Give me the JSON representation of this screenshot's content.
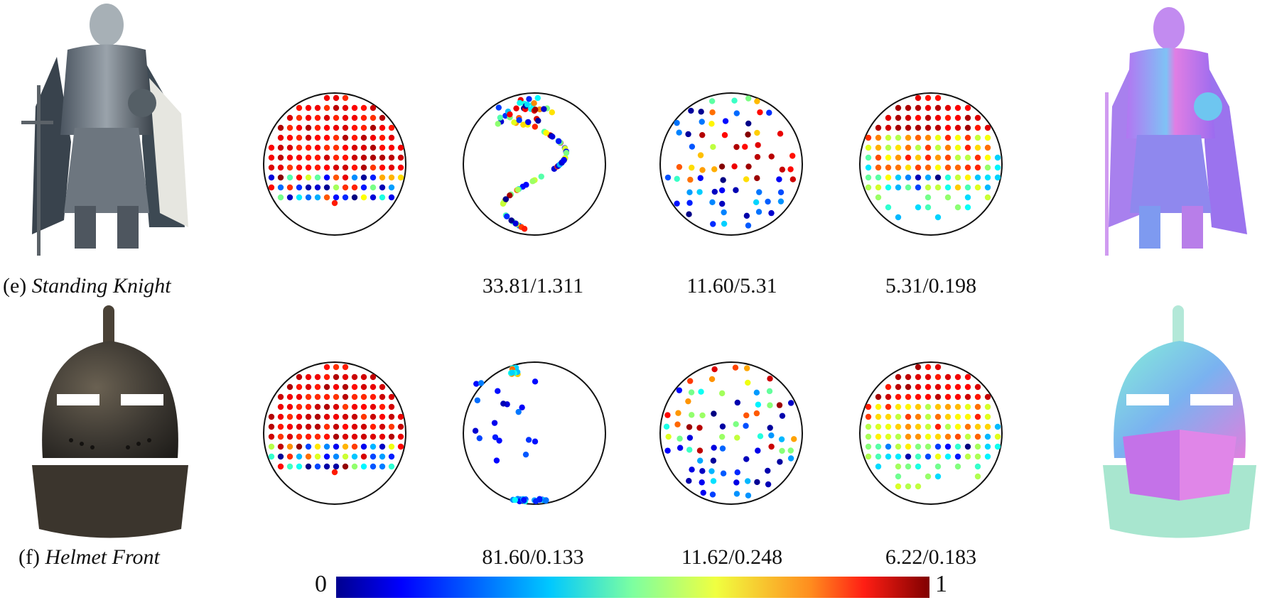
{
  "rows": [
    {
      "id": "e",
      "caption_prefix": "(e) ",
      "caption_title": "Standing Knight",
      "metrics": [
        "",
        "33.81/1.311",
        "11.60/5.31",
        "5.31/0.198"
      ]
    },
    {
      "id": "f",
      "caption_prefix": "(f) ",
      "caption_title": "Helmet Front",
      "metrics": [
        "",
        "81.60/0.133",
        "11.62/0.248",
        "6.22/0.183"
      ]
    }
  ],
  "colorbar": {
    "min_label": "0",
    "max_label": "1",
    "colormap": "jet"
  },
  "chart_data": {
    "type": "scatter",
    "description_free": true,
    "plots": [
      {
        "row": "e",
        "col": 0,
        "pattern": "grid",
        "transition": 0.66
      },
      {
        "row": "e",
        "col": 1,
        "pattern": "sparse-s",
        "transition": 0.0
      },
      {
        "row": "e",
        "col": 2,
        "pattern": "mixed-mid",
        "transition": 0.0
      },
      {
        "row": "e",
        "col": 3,
        "pattern": "rings",
        "transition": 0.0
      },
      {
        "row": "f",
        "col": 0,
        "pattern": "grid",
        "transition": 0.66
      },
      {
        "row": "f",
        "col": 1,
        "pattern": "sparse-edge",
        "transition": 0.0
      },
      {
        "row": "f",
        "col": 2,
        "pattern": "mixed-top",
        "transition": 0.0
      },
      {
        "row": "f",
        "col": 3,
        "pattern": "rings",
        "transition": 0.0
      }
    ]
  }
}
